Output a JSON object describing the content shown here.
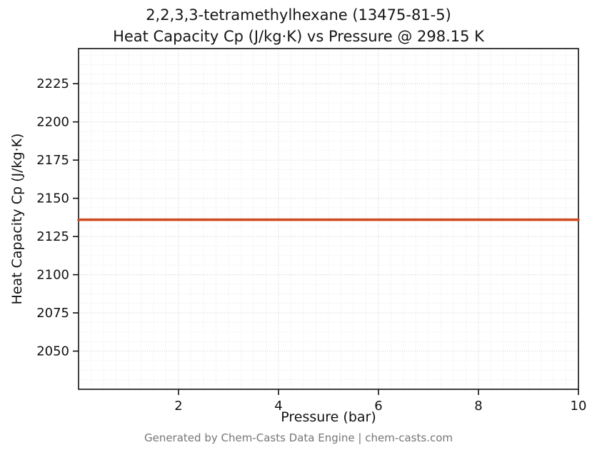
{
  "title": {
    "line1": "2,2,3,3-tetramethylhexane (13475-81-5)",
    "line2": "Heat Capacity Cp (J/kg·K) vs Pressure @ 298.15 K"
  },
  "footer": {
    "text": "Generated by Chem-Casts Data Engine | chem-casts.com"
  },
  "chart_data": {
    "type": "line",
    "title": "2,2,3,3-tetramethylhexane (13475-81-5)\nHeat Capacity Cp (J/kg·K) vs Pressure @ 298.15 K",
    "xlabel": "Pressure (bar)",
    "ylabel": "Heat Capacity Cp (J/kg·K)",
    "xlim": [
      0,
      10
    ],
    "ylim": [
      2025,
      2248
    ],
    "x_ticks": [
      2,
      4,
      6,
      8,
      10
    ],
    "y_ticks": [
      2050,
      2075,
      2100,
      2125,
      2150,
      2175,
      2200,
      2225
    ],
    "minor_x_step": 0.25,
    "minor_y_step": 6.25,
    "grid": true,
    "legend": "none",
    "series": [
      {
        "name": "Heat Capacity Cp",
        "color": "#cc4a1e",
        "line_width": 3.5,
        "x": [
          0,
          1,
          2,
          3,
          4,
          5,
          6,
          7,
          8,
          9,
          10
        ],
        "y": [
          2136,
          2136,
          2136,
          2136,
          2136,
          2136,
          2136,
          2136,
          2136,
          2136,
          2136
        ]
      }
    ]
  },
  "style": {
    "minor_grid_color": "#e3e3e3",
    "major_grid_color": "#cfcfcf",
    "axis_color": "#111111",
    "tick_label_color": "#111111",
    "plot_bg": "#ffffff"
  }
}
